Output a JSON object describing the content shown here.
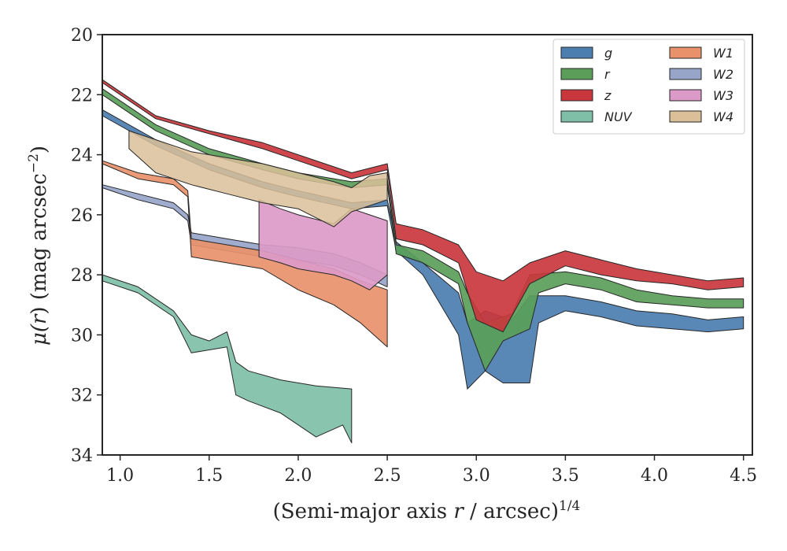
{
  "chart_data": {
    "type": "area",
    "xlabel": "(Semi-major axis r / arcsec)",
    "xlabel_parts": {
      "prefix": "(Semi-major axis ",
      "var": "r",
      "suffix": " / arcsec)",
      "exponent": "1/4"
    },
    "ylabel": "μ(r) (mag arcsec⁻²)",
    "ylabel_parts": {
      "mu": "μ(",
      "var": "r",
      "suffix": ") (mag arcsec",
      "exponent": "−2",
      "close": ")"
    },
    "xlim": [
      0.9,
      4.55
    ],
    "ylim": [
      34,
      20
    ],
    "y_inverted": true,
    "x_ticks": [
      1.0,
      1.5,
      2.0,
      2.5,
      3.0,
      3.5,
      4.0,
      4.5
    ],
    "x_tick_labels": [
      "1.0",
      "1.5",
      "2.0",
      "2.5",
      "3.0",
      "3.5",
      "4.0",
      "4.5"
    ],
    "y_ticks": [
      20,
      22,
      24,
      26,
      28,
      30,
      32,
      34
    ],
    "y_tick_labels": [
      "20",
      "22",
      "24",
      "26",
      "28",
      "30",
      "32",
      "34"
    ],
    "grid": false,
    "legend": {
      "placement": "top-right",
      "columns": 2
    },
    "series": [
      {
        "name": "g",
        "color": "#4c7eb0",
        "upper": [
          [
            0.9,
            22.5
          ],
          [
            1.2,
            23.5
          ],
          [
            1.5,
            24.3
          ],
          [
            1.8,
            24.9
          ],
          [
            2.0,
            25.2
          ],
          [
            2.3,
            25.6
          ],
          [
            2.5,
            25.5
          ],
          [
            2.55,
            26.9
          ],
          [
            2.7,
            27.6
          ],
          [
            2.9,
            28.6
          ],
          [
            2.95,
            29.6
          ],
          [
            3.05,
            29.2
          ],
          [
            3.2,
            29.5
          ],
          [
            3.3,
            28.7
          ],
          [
            3.5,
            28.7
          ],
          [
            3.7,
            28.9
          ],
          [
            3.9,
            29.2
          ],
          [
            4.1,
            29.3
          ],
          [
            4.3,
            29.5
          ],
          [
            4.5,
            29.4
          ]
        ],
        "lower": [
          [
            0.9,
            22.7
          ],
          [
            1.2,
            23.7
          ],
          [
            1.5,
            24.5
          ],
          [
            1.8,
            25.1
          ],
          [
            2.0,
            25.4
          ],
          [
            2.3,
            25.8
          ],
          [
            2.5,
            25.7
          ],
          [
            2.55,
            27.2
          ],
          [
            2.7,
            28.0
          ],
          [
            2.9,
            30.0
          ],
          [
            2.95,
            31.8
          ],
          [
            3.05,
            31.2
          ],
          [
            3.15,
            31.6
          ],
          [
            3.3,
            31.6
          ],
          [
            3.35,
            29.6
          ],
          [
            3.5,
            29.2
          ],
          [
            3.7,
            29.4
          ],
          [
            3.9,
            29.7
          ],
          [
            4.1,
            29.8
          ],
          [
            4.3,
            29.9
          ],
          [
            4.5,
            29.8
          ]
        ]
      },
      {
        "name": "r",
        "color": "#5a9e5a",
        "upper": [
          [
            0.9,
            21.8
          ],
          [
            1.2,
            23.0
          ],
          [
            1.5,
            23.8
          ],
          [
            1.8,
            24.3
          ],
          [
            2.0,
            24.6
          ],
          [
            2.3,
            24.9
          ],
          [
            2.5,
            24.8
          ],
          [
            2.55,
            27.0
          ],
          [
            2.7,
            27.2
          ],
          [
            2.9,
            27.9
          ],
          [
            2.95,
            28.6
          ],
          [
            3.05,
            29.6
          ],
          [
            3.2,
            29.3
          ],
          [
            3.3,
            28.0
          ],
          [
            3.5,
            27.9
          ],
          [
            3.7,
            28.1
          ],
          [
            3.9,
            28.5
          ],
          [
            4.1,
            28.7
          ],
          [
            4.3,
            28.8
          ],
          [
            4.5,
            28.8
          ]
        ],
        "lower": [
          [
            0.9,
            22.0
          ],
          [
            1.2,
            23.2
          ],
          [
            1.5,
            24.0
          ],
          [
            1.8,
            24.5
          ],
          [
            2.0,
            24.8
          ],
          [
            2.3,
            25.1
          ],
          [
            2.5,
            25.0
          ],
          [
            2.55,
            27.3
          ],
          [
            2.7,
            27.6
          ],
          [
            2.9,
            28.3
          ],
          [
            2.95,
            29.6
          ],
          [
            3.05,
            31.2
          ],
          [
            3.15,
            30.2
          ],
          [
            3.3,
            29.8
          ],
          [
            3.35,
            28.6
          ],
          [
            3.5,
            28.3
          ],
          [
            3.7,
            28.5
          ],
          [
            3.9,
            28.9
          ],
          [
            4.1,
            29.0
          ],
          [
            4.3,
            29.1
          ],
          [
            4.5,
            29.1
          ]
        ]
      },
      {
        "name": "z",
        "color": "#c9373d",
        "upper": [
          [
            0.9,
            21.5
          ],
          [
            1.2,
            22.7
          ],
          [
            1.5,
            23.2
          ],
          [
            1.8,
            23.6
          ],
          [
            2.0,
            24.0
          ],
          [
            2.3,
            24.6
          ],
          [
            2.5,
            24.3
          ],
          [
            2.55,
            26.3
          ],
          [
            2.7,
            26.5
          ],
          [
            2.9,
            27.0
          ],
          [
            3.0,
            27.9
          ],
          [
            3.15,
            28.2
          ],
          [
            3.3,
            27.6
          ],
          [
            3.5,
            27.2
          ],
          [
            3.7,
            27.5
          ],
          [
            3.9,
            27.8
          ],
          [
            4.1,
            28.0
          ],
          [
            4.3,
            28.2
          ],
          [
            4.5,
            28.1
          ]
        ],
        "lower": [
          [
            0.9,
            21.6
          ],
          [
            1.2,
            22.8
          ],
          [
            1.5,
            23.3
          ],
          [
            1.8,
            23.8
          ],
          [
            2.0,
            24.2
          ],
          [
            2.3,
            24.8
          ],
          [
            2.5,
            24.5
          ],
          [
            2.55,
            26.8
          ],
          [
            2.7,
            27.0
          ],
          [
            2.9,
            27.6
          ],
          [
            3.0,
            29.5
          ],
          [
            3.15,
            29.9
          ],
          [
            3.3,
            28.3
          ],
          [
            3.5,
            27.7
          ],
          [
            3.7,
            28.0
          ],
          [
            3.9,
            28.2
          ],
          [
            4.1,
            28.3
          ],
          [
            4.3,
            28.5
          ],
          [
            4.5,
            28.4
          ]
        ]
      },
      {
        "name": "NUV",
        "color": "#7fbfa8",
        "upper": [
          [
            0.9,
            28.0
          ],
          [
            1.1,
            28.4
          ],
          [
            1.3,
            29.2
          ],
          [
            1.4,
            30.0
          ],
          [
            1.5,
            30.2
          ],
          [
            1.6,
            29.9
          ],
          [
            1.65,
            30.9
          ],
          [
            1.72,
            31.2
          ],
          [
            1.9,
            31.5
          ],
          [
            2.1,
            31.7
          ],
          [
            2.3,
            31.8
          ]
        ],
        "lower": [
          [
            0.9,
            28.2
          ],
          [
            1.1,
            28.6
          ],
          [
            1.3,
            29.4
          ],
          [
            1.4,
            30.6
          ],
          [
            1.5,
            30.5
          ],
          [
            1.6,
            30.4
          ],
          [
            1.65,
            32.0
          ],
          [
            1.72,
            32.2
          ],
          [
            1.9,
            32.6
          ],
          [
            2.1,
            33.4
          ],
          [
            2.25,
            33.0
          ],
          [
            2.3,
            33.6
          ]
        ]
      },
      {
        "name": "W1",
        "color": "#e8916a",
        "upper": [
          [
            0.9,
            24.2
          ],
          [
            1.1,
            24.6
          ],
          [
            1.3,
            24.8
          ],
          [
            1.38,
            25.2
          ],
          [
            1.4,
            26.8
          ],
          [
            1.6,
            27.0
          ],
          [
            1.8,
            27.2
          ],
          [
            2.0,
            27.5
          ],
          [
            2.2,
            27.8
          ],
          [
            2.35,
            28.2
          ],
          [
            2.5,
            28.5
          ]
        ],
        "lower": [
          [
            0.9,
            24.3
          ],
          [
            1.1,
            24.8
          ],
          [
            1.3,
            25.0
          ],
          [
            1.38,
            25.4
          ],
          [
            1.4,
            27.4
          ],
          [
            1.6,
            27.6
          ],
          [
            1.8,
            27.8
          ],
          [
            2.0,
            28.5
          ],
          [
            2.2,
            29.0
          ],
          [
            2.35,
            29.6
          ],
          [
            2.5,
            30.4
          ]
        ]
      },
      {
        "name": "W2",
        "color": "#97a5c9",
        "upper": [
          [
            0.9,
            25.0
          ],
          [
            1.1,
            25.3
          ],
          [
            1.3,
            25.6
          ],
          [
            1.38,
            26.0
          ],
          [
            1.4,
            26.6
          ],
          [
            1.6,
            26.8
          ],
          [
            1.8,
            27.0
          ],
          [
            2.0,
            27.1
          ],
          [
            2.2,
            27.3
          ],
          [
            2.35,
            27.6
          ],
          [
            2.5,
            28.0
          ]
        ],
        "lower": [
          [
            0.9,
            25.1
          ],
          [
            1.1,
            25.5
          ],
          [
            1.3,
            25.8
          ],
          [
            1.38,
            26.2
          ],
          [
            1.4,
            27.0
          ],
          [
            1.6,
            27.2
          ],
          [
            1.8,
            27.4
          ],
          [
            2.0,
            27.5
          ],
          [
            2.2,
            27.7
          ],
          [
            2.35,
            28.0
          ],
          [
            2.5,
            28.4
          ]
        ]
      },
      {
        "name": "W3",
        "color": "#dc9ac8",
        "upper": [
          [
            1.78,
            25.5
          ],
          [
            1.9,
            25.8
          ],
          [
            2.0,
            26.0
          ],
          [
            2.2,
            26.3
          ],
          [
            2.3,
            25.8
          ],
          [
            2.4,
            26.0
          ],
          [
            2.5,
            26.2
          ]
        ],
        "lower": [
          [
            1.78,
            27.4
          ],
          [
            1.9,
            27.6
          ],
          [
            2.0,
            27.8
          ],
          [
            2.2,
            28.0
          ],
          [
            2.3,
            28.2
          ],
          [
            2.4,
            28.5
          ],
          [
            2.5,
            28.0
          ]
        ]
      },
      {
        "name": "W4",
        "color": "#dbbf99",
        "upper": [
          [
            1.05,
            23.2
          ],
          [
            1.2,
            23.5
          ],
          [
            1.4,
            23.9
          ],
          [
            1.6,
            24.1
          ],
          [
            1.8,
            24.3
          ],
          [
            2.0,
            24.6
          ],
          [
            2.2,
            24.9
          ],
          [
            2.3,
            25.1
          ],
          [
            2.4,
            24.7
          ],
          [
            2.5,
            24.6
          ]
        ],
        "lower": [
          [
            1.05,
            23.8
          ],
          [
            1.2,
            24.6
          ],
          [
            1.4,
            25.0
          ],
          [
            1.6,
            25.3
          ],
          [
            1.8,
            25.6
          ],
          [
            2.0,
            25.8
          ],
          [
            2.2,
            26.4
          ],
          [
            2.3,
            25.9
          ],
          [
            2.4,
            25.7
          ],
          [
            2.5,
            25.5
          ]
        ]
      }
    ]
  }
}
